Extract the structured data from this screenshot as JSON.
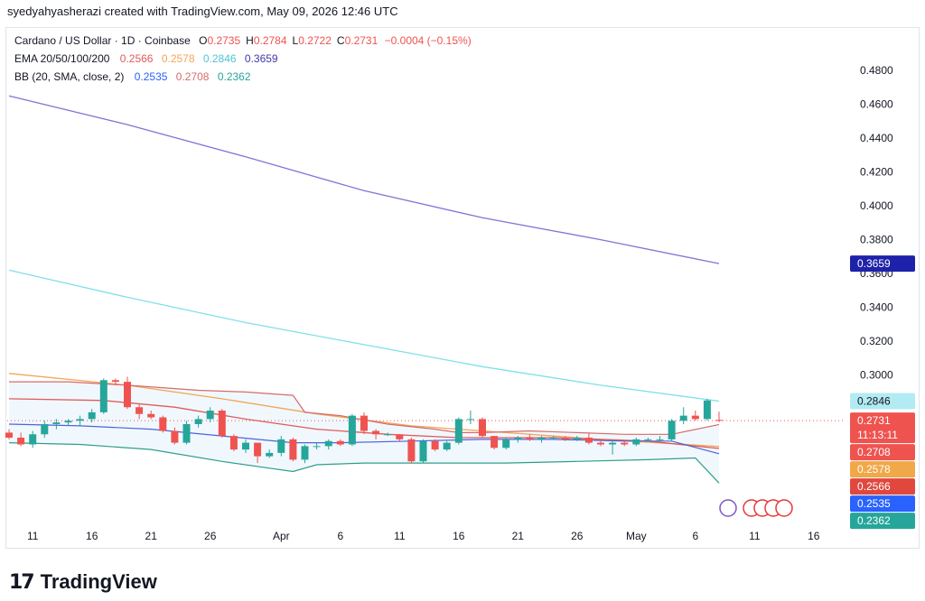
{
  "header": {
    "text": "syedyahyasherazi created with TradingView.com, May 09, 2026 12:46 UTC"
  },
  "legend": {
    "symbol": "Cardano / US Dollar · 1D · Coinbase",
    "ohlc": [
      {
        "k": "O",
        "v": "0.2735"
      },
      {
        "k": "H",
        "v": "0.2784"
      },
      {
        "k": "L",
        "v": "0.2722"
      },
      {
        "k": "C",
        "v": "0.2731"
      }
    ],
    "change": "−0.0004 (−0.15%)",
    "ema_label": "EMA 20/50/100/200",
    "ema_values": [
      "0.2566",
      "0.2578",
      "0.2846",
      "0.3659"
    ],
    "bb_label": "BB (20, SMA, close, 2)",
    "bb_values": [
      "0.2535",
      "0.2708",
      "0.2362"
    ]
  },
  "footer": {
    "brand": "TradingView",
    "logo_icon": "tradingview-logo-icon"
  },
  "colors": {
    "up": "#26a69a",
    "down": "#ef5350",
    "ema20": "#e15b5b",
    "ema50": "#f2a654",
    "ema100": "#7fe0e8",
    "ema200": "#7d76d6",
    "bb_basis": "#4f63d8",
    "bb_upper": "#d66b6b",
    "bb_lower": "#2f9e8a",
    "bb_fill": "#e3f2fd"
  },
  "chart_data": {
    "type": "candlestick",
    "title": "Cardano / US Dollar · 1D · Coinbase",
    "ylim": [
      0.215,
      0.495
    ],
    "y_ticks": [
      "0.4800",
      "0.4600",
      "0.4400",
      "0.4200",
      "0.4000",
      "0.3800",
      "0.3600",
      "0.3400",
      "0.3200",
      "0.3000"
    ],
    "x_ticks": [
      {
        "label": "11",
        "i": 2
      },
      {
        "label": "16",
        "i": 7
      },
      {
        "label": "21",
        "i": 12
      },
      {
        "label": "26",
        "i": 17
      },
      {
        "label": "Apr",
        "i": 23
      },
      {
        "label": "6",
        "i": 28
      },
      {
        "label": "11",
        "i": 33
      },
      {
        "label": "16",
        "i": 38
      },
      {
        "label": "21",
        "i": 43
      },
      {
        "label": "26",
        "i": 48
      },
      {
        "label": "May",
        "i": 53
      },
      {
        "label": "6",
        "i": 58
      },
      {
        "label": "11",
        "i": 63
      },
      {
        "label": "16",
        "i": 68
      }
    ],
    "candles": [
      [
        0.266,
        0.268,
        0.262,
        0.263
      ],
      [
        0.263,
        0.266,
        0.258,
        0.259
      ],
      [
        0.259,
        0.267,
        0.257,
        0.265
      ],
      [
        0.265,
        0.273,
        0.263,
        0.271
      ],
      [
        0.271,
        0.274,
        0.268,
        0.272
      ],
      [
        0.272,
        0.274,
        0.27,
        0.273
      ],
      [
        0.273,
        0.276,
        0.27,
        0.274
      ],
      [
        0.274,
        0.28,
        0.272,
        0.278
      ],
      [
        0.278,
        0.298,
        0.277,
        0.297
      ],
      [
        0.297,
        0.298,
        0.294,
        0.296
      ],
      [
        0.296,
        0.299,
        0.28,
        0.281
      ],
      [
        0.281,
        0.283,
        0.274,
        0.277
      ],
      [
        0.277,
        0.279,
        0.274,
        0.275
      ],
      [
        0.275,
        0.276,
        0.266,
        0.267
      ],
      [
        0.267,
        0.269,
        0.259,
        0.26
      ],
      [
        0.26,
        0.273,
        0.259,
        0.271
      ],
      [
        0.271,
        0.276,
        0.269,
        0.274
      ],
      [
        0.274,
        0.281,
        0.272,
        0.279
      ],
      [
        0.279,
        0.28,
        0.263,
        0.264
      ],
      [
        0.264,
        0.265,
        0.255,
        0.256
      ],
      [
        0.256,
        0.262,
        0.254,
        0.26
      ],
      [
        0.26,
        0.26,
        0.248,
        0.252
      ],
      [
        0.252,
        0.256,
        0.251,
        0.254
      ],
      [
        0.254,
        0.264,
        0.252,
        0.262
      ],
      [
        0.262,
        0.263,
        0.249,
        0.25
      ],
      [
        0.25,
        0.259,
        0.248,
        0.258
      ],
      [
        0.258,
        0.26,
        0.256,
        0.258
      ],
      [
        0.258,
        0.262,
        0.256,
        0.261
      ],
      [
        0.261,
        0.262,
        0.258,
        0.259
      ],
      [
        0.259,
        0.277,
        0.258,
        0.276
      ],
      [
        0.276,
        0.278,
        0.265,
        0.267
      ],
      [
        0.267,
        0.268,
        0.262,
        0.265
      ],
      [
        0.265,
        0.266,
        0.264,
        0.265
      ],
      [
        0.265,
        0.265,
        0.261,
        0.262
      ],
      [
        0.262,
        0.263,
        0.248,
        0.249
      ],
      [
        0.249,
        0.262,
        0.248,
        0.261
      ],
      [
        0.261,
        0.262,
        0.255,
        0.256
      ],
      [
        0.256,
        0.261,
        0.255,
        0.26
      ],
      [
        0.26,
        0.275,
        0.259,
        0.274
      ],
      [
        0.274,
        0.279,
        0.271,
        0.274
      ],
      [
        0.274,
        0.275,
        0.263,
        0.264
      ],
      [
        0.264,
        0.264,
        0.256,
        0.257
      ],
      [
        0.257,
        0.263,
        0.256,
        0.262
      ],
      [
        0.262,
        0.264,
        0.26,
        0.263
      ],
      [
        0.263,
        0.265,
        0.261,
        0.262
      ],
      [
        0.262,
        0.264,
        0.26,
        0.263
      ],
      [
        0.263,
        0.264,
        0.262,
        0.263
      ],
      [
        0.263,
        0.264,
        0.261,
        0.262
      ],
      [
        0.262,
        0.264,
        0.261,
        0.263
      ],
      [
        0.263,
        0.266,
        0.259,
        0.26
      ],
      [
        0.26,
        0.262,
        0.258,
        0.259
      ],
      [
        0.259,
        0.261,
        0.253,
        0.26
      ],
      [
        0.26,
        0.261,
        0.258,
        0.259
      ],
      [
        0.259,
        0.263,
        0.258,
        0.262
      ],
      [
        0.262,
        0.263,
        0.261,
        0.262
      ],
      [
        0.262,
        0.264,
        0.261,
        0.262
      ],
      [
        0.262,
        0.274,
        0.261,
        0.273
      ],
      [
        0.273,
        0.281,
        0.271,
        0.276
      ],
      [
        0.276,
        0.279,
        0.273,
        0.274
      ],
      [
        0.274,
        0.286,
        0.273,
        0.285
      ],
      [
        0.2735,
        0.2784,
        0.2722,
        0.2731
      ]
    ],
    "ema200": [
      [
        0,
        0.465
      ],
      [
        10,
        0.448
      ],
      [
        20,
        0.429
      ],
      [
        30,
        0.409
      ],
      [
        40,
        0.393
      ],
      [
        50,
        0.38
      ],
      [
        60,
        0.3659
      ]
    ],
    "ema100": [
      [
        0,
        0.362
      ],
      [
        10,
        0.346
      ],
      [
        20,
        0.331
      ],
      [
        30,
        0.318
      ],
      [
        40,
        0.305
      ],
      [
        50,
        0.294
      ],
      [
        60,
        0.2846
      ]
    ],
    "ema50": [
      [
        0,
        0.301
      ],
      [
        10,
        0.294
      ],
      [
        18,
        0.286
      ],
      [
        26,
        0.277
      ],
      [
        34,
        0.27
      ],
      [
        42,
        0.266
      ],
      [
        50,
        0.262
      ],
      [
        60,
        0.2578
      ]
    ],
    "ema20": [
      [
        0,
        0.286
      ],
      [
        8,
        0.285
      ],
      [
        14,
        0.281
      ],
      [
        20,
        0.274
      ],
      [
        26,
        0.268
      ],
      [
        32,
        0.265
      ],
      [
        38,
        0.263
      ],
      [
        46,
        0.263
      ],
      [
        54,
        0.261
      ],
      [
        60,
        0.2566
      ]
    ],
    "bb_upper": [
      [
        0,
        0.296
      ],
      [
        5,
        0.296
      ],
      [
        10,
        0.294
      ],
      [
        16,
        0.291
      ],
      [
        20,
        0.29
      ],
      [
        24,
        0.288
      ],
      [
        25,
        0.278
      ],
      [
        28,
        0.276
      ],
      [
        32,
        0.271
      ],
      [
        36,
        0.268
      ],
      [
        38,
        0.266
      ],
      [
        40,
        0.266
      ],
      [
        44,
        0.267
      ],
      [
        48,
        0.266
      ],
      [
        52,
        0.265
      ],
      [
        56,
        0.265
      ],
      [
        60,
        0.2708
      ]
    ],
    "bb_basis": [
      [
        0,
        0.271
      ],
      [
        6,
        0.27
      ],
      [
        12,
        0.268
      ],
      [
        18,
        0.264
      ],
      [
        24,
        0.26
      ],
      [
        28,
        0.26
      ],
      [
        34,
        0.261
      ],
      [
        40,
        0.262
      ],
      [
        46,
        0.262
      ],
      [
        52,
        0.261
      ],
      [
        56,
        0.261
      ],
      [
        60,
        0.2535
      ]
    ],
    "bb_lower": [
      [
        0,
        0.26
      ],
      [
        6,
        0.259
      ],
      [
        12,
        0.256
      ],
      [
        18,
        0.249
      ],
      [
        22,
        0.245
      ],
      [
        24,
        0.243
      ],
      [
        26,
        0.247
      ],
      [
        30,
        0.248
      ],
      [
        36,
        0.248
      ],
      [
        42,
        0.248
      ],
      [
        48,
        0.249
      ],
      [
        54,
        0.25
      ],
      [
        58,
        0.251
      ],
      [
        60,
        0.2362
      ]
    ],
    "current_price": 0.2731,
    "price_labels": [
      {
        "value": 0.3659,
        "text": "0.3659",
        "color": "#1e22aa",
        "fg": "#ffffff"
      },
      {
        "value": 0.2846,
        "text": "0.2846",
        "color": "#b2ebf2",
        "fg": "#131722"
      },
      {
        "value": 0.2731,
        "text": "0.2731",
        "sub": "11:13:11",
        "color": "#ef5350",
        "fg": "#ffffff"
      },
      {
        "value": 0.2708,
        "text": "0.2708",
        "color": "#ef5350",
        "fg": "#ffffff"
      },
      {
        "value": 0.2578,
        "text": "0.2578",
        "color": "#f0a848",
        "fg": "#ffffff"
      },
      {
        "value": 0.2566,
        "text": "0.2566",
        "color": "#e0483e",
        "fg": "#ffffff"
      },
      {
        "value": 0.2535,
        "text": "0.2535",
        "color": "#2962ff",
        "fg": "#ffffff"
      },
      {
        "value": 0.2362,
        "text": "0.2362",
        "color": "#26a69a",
        "fg": "#ffffff"
      }
    ]
  }
}
